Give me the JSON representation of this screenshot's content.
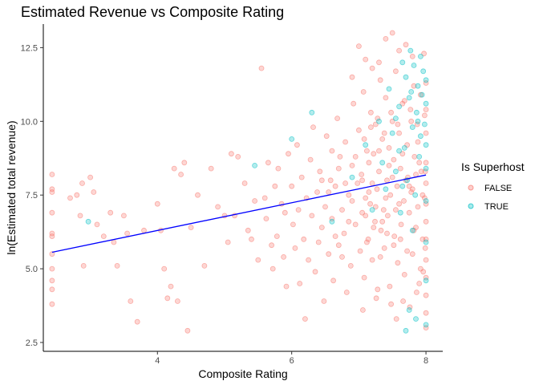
{
  "chart_data": {
    "type": "scatter",
    "title": "Estimated Revenue vs Composite Rating",
    "xlabel": "Composite Rating",
    "ylabel": "ln(Estimated total revenue)",
    "xlim": [
      2.3,
      8.25
    ],
    "ylim": [
      2.2,
      13.3
    ],
    "x_ticks": [
      4,
      6,
      8
    ],
    "x_tick_labels": [
      "4",
      "6",
      "8"
    ],
    "y_ticks": [
      2.5,
      5.0,
      7.5,
      10.0,
      12.5
    ],
    "y_tick_labels": [
      "2.5",
      "5.0",
      "7.5",
      "10.0",
      "12.5"
    ],
    "grid": false,
    "legend": {
      "title": "Is Superhost",
      "position": "right",
      "entries": [
        {
          "label": "FALSE",
          "color": "#F8766D"
        },
        {
          "label": "TRUE",
          "color": "#00BFC4"
        }
      ]
    },
    "trend_line": {
      "color": "#0000ff",
      "x": [
        2.43,
        8.0
      ],
      "y": [
        5.56,
        8.18
      ]
    },
    "series": [
      {
        "name": "FALSE",
        "color": "#F8766D",
        "points": [
          [
            2.43,
            8.2
          ],
          [
            2.43,
            7.7
          ],
          [
            2.43,
            7.6
          ],
          [
            2.43,
            6.9
          ],
          [
            2.43,
            6.2
          ],
          [
            2.43,
            6.1
          ],
          [
            2.43,
            5.5
          ],
          [
            2.43,
            5.0
          ],
          [
            2.43,
            4.6
          ],
          [
            2.43,
            4.3
          ],
          [
            2.43,
            3.8
          ],
          [
            2.7,
            7.4
          ],
          [
            2.8,
            7.5
          ],
          [
            2.85,
            6.8
          ],
          [
            2.88,
            7.9
          ],
          [
            2.9,
            5.1
          ],
          [
            3.0,
            8.1
          ],
          [
            3.05,
            7.6
          ],
          [
            3.1,
            6.5
          ],
          [
            3.2,
            6.1
          ],
          [
            3.3,
            6.9
          ],
          [
            3.35,
            5.9
          ],
          [
            3.4,
            5.1
          ],
          [
            3.5,
            6.8
          ],
          [
            3.55,
            6.2
          ],
          [
            3.6,
            3.9
          ],
          [
            3.7,
            3.2
          ],
          [
            3.8,
            6.3
          ],
          [
            4.0,
            7.2
          ],
          [
            4.05,
            6.3
          ],
          [
            4.1,
            5.0
          ],
          [
            4.15,
            4.0
          ],
          [
            4.2,
            4.4
          ],
          [
            4.25,
            8.4
          ],
          [
            4.3,
            3.9
          ],
          [
            4.35,
            8.2
          ],
          [
            4.4,
            8.6
          ],
          [
            4.45,
            2.9
          ],
          [
            4.5,
            6.4
          ],
          [
            4.6,
            7.5
          ],
          [
            4.7,
            5.1
          ],
          [
            4.8,
            8.4
          ],
          [
            4.9,
            7.1
          ],
          [
            5.0,
            6.8
          ],
          [
            5.05,
            5.9
          ],
          [
            5.1,
            8.9
          ],
          [
            5.15,
            6.8
          ],
          [
            5.2,
            8.8
          ],
          [
            5.3,
            7.9
          ],
          [
            5.35,
            6.3
          ],
          [
            5.4,
            6.0
          ],
          [
            5.45,
            7.3
          ],
          [
            5.5,
            5.3
          ],
          [
            5.55,
            11.8
          ],
          [
            5.6,
            7.4
          ],
          [
            5.62,
            6.7
          ],
          [
            5.65,
            8.6
          ],
          [
            5.7,
            5.8
          ],
          [
            5.72,
            5.0
          ],
          [
            5.75,
            7.8
          ],
          [
            5.78,
            6.1
          ],
          [
            5.8,
            8.4
          ],
          [
            5.85,
            7.2
          ],
          [
            5.88,
            5.4
          ],
          [
            5.9,
            6.9
          ],
          [
            5.92,
            4.4
          ],
          [
            5.95,
            8.9
          ],
          [
            6.0,
            7.8
          ],
          [
            6.02,
            6.5
          ],
          [
            6.05,
            5.7
          ],
          [
            6.08,
            9.2
          ],
          [
            6.1,
            7.0
          ],
          [
            6.12,
            4.5
          ],
          [
            6.15,
            8.1
          ],
          [
            6.18,
            6.0
          ],
          [
            6.2,
            3.3
          ],
          [
            6.22,
            7.4
          ],
          [
            6.25,
            5.3
          ],
          [
            6.28,
            8.7
          ],
          [
            6.3,
            6.8
          ],
          [
            6.32,
            9.8
          ],
          [
            6.35,
            4.9
          ],
          [
            6.38,
            7.6
          ],
          [
            6.4,
            5.9
          ],
          [
            6.42,
            8.3
          ],
          [
            6.45,
            6.4
          ],
          [
            6.48,
            3.9
          ],
          [
            6.5,
            7.1
          ],
          [
            6.52,
            9.5
          ],
          [
            6.55,
            5.5
          ],
          [
            6.58,
            8.0
          ],
          [
            6.6,
            6.7
          ],
          [
            6.62,
            4.6
          ],
          [
            6.65,
            7.8
          ],
          [
            6.68,
            10.1
          ],
          [
            6.7,
            5.8
          ],
          [
            6.72,
            8.8
          ],
          [
            6.75,
            7.0
          ],
          [
            6.78,
            6.2
          ],
          [
            6.8,
            9.3
          ],
          [
            6.82,
            4.2
          ],
          [
            6.85,
            7.5
          ],
          [
            6.88,
            5.1
          ],
          [
            6.9,
            8.5
          ],
          [
            6.92,
            10.6
          ],
          [
            6.95,
            6.5
          ],
          [
            6.98,
            7.9
          ],
          [
            7.0,
            9.7
          ],
          [
            7.02,
            5.6
          ],
          [
            7.04,
            8.2
          ],
          [
            7.05,
            6.9
          ],
          [
            7.07,
            11.0
          ],
          [
            7.08,
            4.7
          ],
          [
            7.1,
            7.4
          ],
          [
            7.12,
            9.0
          ],
          [
            7.14,
            6.0
          ],
          [
            7.15,
            8.6
          ],
          [
            7.17,
            7.2
          ],
          [
            7.18,
            10.3
          ],
          [
            7.2,
            5.3
          ],
          [
            7.22,
            8.9
          ],
          [
            7.24,
            6.6
          ],
          [
            7.25,
            9.9
          ],
          [
            7.27,
            7.7
          ],
          [
            7.28,
            4.3
          ],
          [
            7.3,
            8.3
          ],
          [
            7.32,
            11.4
          ],
          [
            7.33,
            6.3
          ],
          [
            7.35,
            9.4
          ],
          [
            7.37,
            7.0
          ],
          [
            7.38,
            5.7
          ],
          [
            7.4,
            10.8
          ],
          [
            7.42,
            8.0
          ],
          [
            7.43,
            6.8
          ],
          [
            7.45,
            9.1
          ],
          [
            7.47,
            7.5
          ],
          [
            7.48,
            3.8
          ],
          [
            7.5,
            10.0
          ],
          [
            7.52,
            8.7
          ],
          [
            7.53,
            6.1
          ],
          [
            7.55,
            11.7
          ],
          [
            7.57,
            7.8
          ],
          [
            7.58,
            5.2
          ],
          [
            7.6,
            9.6
          ],
          [
            7.62,
            8.4
          ],
          [
            7.63,
            6.5
          ],
          [
            7.65,
            10.6
          ],
          [
            7.67,
            7.3
          ],
          [
            7.68,
            4.8
          ],
          [
            7.7,
            12.6
          ],
          [
            7.72,
            9.2
          ],
          [
            7.73,
            8.1
          ],
          [
            7.75,
            6.9
          ],
          [
            7.77,
            10.4
          ],
          [
            7.78,
            7.6
          ],
          [
            7.8,
            5.5
          ],
          [
            7.82,
            11.2
          ],
          [
            7.83,
            8.8
          ],
          [
            7.85,
            6.4
          ],
          [
            7.87,
            9.9
          ],
          [
            7.88,
            7.1
          ],
          [
            7.9,
            4.5
          ],
          [
            7.92,
            10.9
          ],
          [
            7.93,
            8.3
          ],
          [
            7.95,
            6.0
          ],
          [
            7.97,
            12.3
          ],
          [
            7.98,
            7.4
          ],
          [
            8.0,
            9.6
          ],
          [
            8.0,
            8.6
          ],
          [
            8.0,
            7.9
          ],
          [
            8.0,
            7.2
          ],
          [
            8.0,
            6.6
          ],
          [
            8.0,
            6.0
          ],
          [
            8.0,
            5.3
          ],
          [
            8.0,
            4.7
          ],
          [
            8.0,
            4.1
          ],
          [
            8.0,
            3.5
          ],
          [
            8.0,
            3.0
          ],
          [
            8.0,
            10.4
          ],
          [
            8.0,
            11.3
          ],
          [
            7.1,
            12.1
          ],
          [
            7.3,
            12.0
          ],
          [
            7.6,
            12.4
          ],
          [
            7.4,
            12.8
          ],
          [
            7.5,
            13.0
          ],
          [
            7.0,
            12.55
          ],
          [
            6.9,
            11.5
          ],
          [
            7.2,
            11.8
          ],
          [
            7.8,
            12.2
          ],
          [
            7.05,
            8.0
          ],
          [
            7.15,
            7.6
          ],
          [
            7.25,
            7.1
          ],
          [
            7.35,
            6.6
          ],
          [
            7.45,
            8.5
          ],
          [
            7.55,
            7.0
          ],
          [
            7.65,
            8.9
          ],
          [
            7.75,
            7.8
          ],
          [
            7.85,
            8.2
          ],
          [
            7.95,
            7.5
          ],
          [
            7.1,
            6.8
          ],
          [
            7.2,
            7.9
          ],
          [
            7.3,
            9.0
          ],
          [
            7.4,
            7.4
          ],
          [
            7.5,
            8.1
          ],
          [
            7.6,
            7.2
          ],
          [
            7.7,
            8.0
          ],
          [
            7.8,
            7.7
          ],
          [
            7.9,
            8.6
          ],
          [
            7.99,
            8.3
          ],
          [
            7.12,
            5.9
          ],
          [
            7.22,
            6.4
          ],
          [
            7.32,
            5.4
          ],
          [
            7.42,
            6.2
          ],
          [
            7.52,
            5.8
          ],
          [
            7.62,
            6.0
          ],
          [
            7.72,
            5.6
          ],
          [
            7.82,
            6.3
          ],
          [
            7.92,
            5.0
          ],
          [
            7.99,
            5.7
          ],
          [
            6.6,
            9.0
          ],
          [
            6.7,
            8.4
          ],
          [
            6.8,
            7.9
          ],
          [
            6.9,
            7.3
          ],
          [
            6.95,
            8.8
          ],
          [
            6.65,
            6.1
          ],
          [
            6.75,
            5.4
          ],
          [
            6.85,
            6.6
          ],
          [
            6.55,
            7.6
          ],
          [
            6.45,
            8.0
          ],
          [
            7.08,
            9.4
          ],
          [
            7.18,
            9.8
          ],
          [
            7.28,
            10.1
          ],
          [
            7.38,
            9.6
          ],
          [
            7.48,
            10.3
          ],
          [
            7.58,
            9.9
          ],
          [
            7.68,
            10.7
          ],
          [
            7.78,
            10.0
          ],
          [
            7.88,
            9.3
          ],
          [
            7.98,
            10.2
          ],
          [
            7.06,
            3.6
          ],
          [
            7.26,
            4.0
          ],
          [
            7.46,
            4.4
          ],
          [
            7.66,
            3.9
          ],
          [
            7.86,
            4.2
          ],
          [
            7.56,
            3.3
          ],
          [
            7.76,
            3.7
          ],
          [
            7.96,
            4.9
          ]
        ]
      },
      {
        "name": "TRUE",
        "color": "#00BFC4",
        "points": [
          [
            2.97,
            6.6
          ],
          [
            5.45,
            8.5
          ],
          [
            6.0,
            9.4
          ],
          [
            6.3,
            10.3
          ],
          [
            6.6,
            6.6
          ],
          [
            6.9,
            8.1
          ],
          [
            7.1,
            9.2
          ],
          [
            7.2,
            7.0
          ],
          [
            7.3,
            10.0
          ],
          [
            7.35,
            8.6
          ],
          [
            7.4,
            7.7
          ],
          [
            7.45,
            11.1
          ],
          [
            7.5,
            9.6
          ],
          [
            7.55,
            8.3
          ],
          [
            7.6,
            10.5
          ],
          [
            7.62,
            6.9
          ],
          [
            7.65,
            12.0
          ],
          [
            7.68,
            9.1
          ],
          [
            7.7,
            11.5
          ],
          [
            7.72,
            8.0
          ],
          [
            7.75,
            10.8
          ],
          [
            7.77,
            12.4
          ],
          [
            7.8,
            9.8
          ],
          [
            7.82,
            11.9
          ],
          [
            7.84,
            7.5
          ],
          [
            7.86,
            10.3
          ],
          [
            7.88,
            11.2
          ],
          [
            7.9,
            8.8
          ],
          [
            7.92,
            9.5
          ],
          [
            7.94,
            10.9
          ],
          [
            7.96,
            11.7
          ],
          [
            7.98,
            9.9
          ],
          [
            8.0,
            10.6
          ],
          [
            8.0,
            11.4
          ],
          [
            8.0,
            9.2
          ],
          [
            8.0,
            8.4
          ],
          [
            8.0,
            7.3
          ],
          [
            8.0,
            5.9
          ],
          [
            8.0,
            3.1
          ],
          [
            7.7,
            2.9
          ],
          [
            7.75,
            3.6
          ],
          [
            7.85,
            3.3
          ],
          [
            8.0,
            4.6
          ],
          [
            7.8,
            6.3
          ],
          [
            7.65,
            7.8
          ],
          [
            7.55,
            10.1
          ],
          [
            7.78,
            11.0
          ],
          [
            7.92,
            12.2
          ],
          [
            7.6,
            9.0
          ],
          [
            7.88,
            10.0
          ]
        ]
      }
    ]
  }
}
